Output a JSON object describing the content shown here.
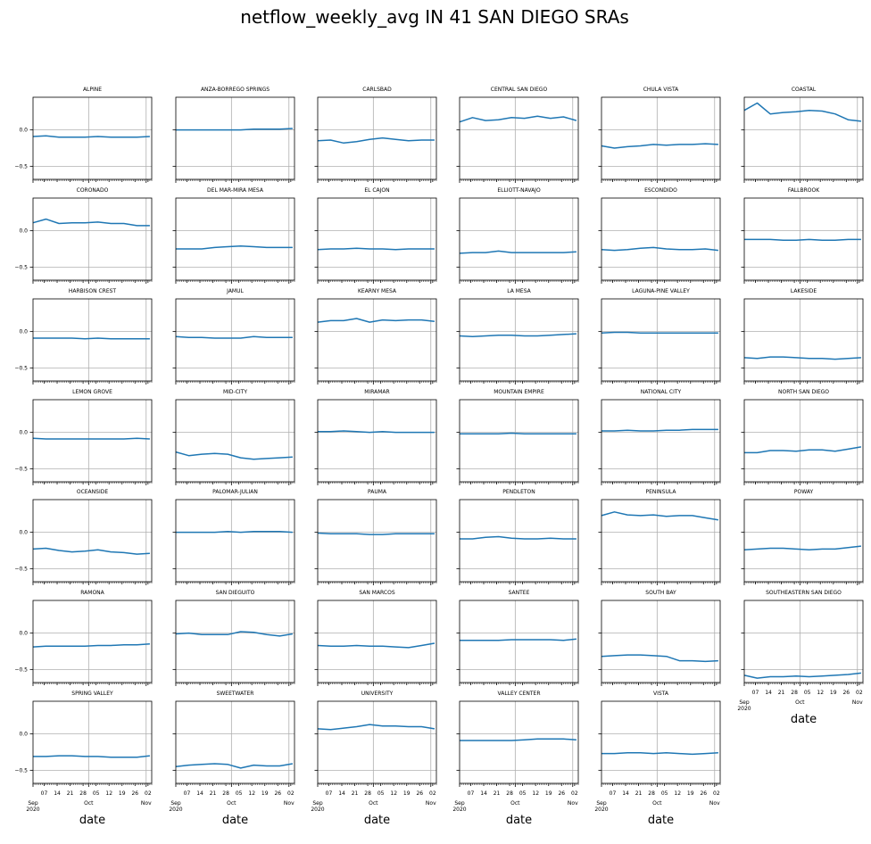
{
  "chart_data": {
    "type": "line",
    "title": "netflow_weekly_avg IN 41 SAN DIEGO SRAs",
    "xlabel": "date",
    "ylim": [
      -0.68,
      0.45
    ],
    "yticks": [
      0.0,
      -0.5
    ],
    "ytick_labels": [
      "0.0",
      "−0.5"
    ],
    "x_range": [
      "2020-09-01",
      "2020-11-04"
    ],
    "x_major_ticks": [
      "2020-10-01",
      "2020-11-01"
    ],
    "x_major_tick_labels": [
      "Oct",
      "Nov"
    ],
    "x_start_label": [
      "Sep",
      "2020"
    ],
    "x_minor_ticks": [
      "2020-09-07",
      "2020-09-14",
      "2020-09-21",
      "2020-09-28",
      "2020-10-05",
      "2020-10-12",
      "2020-10-19",
      "2020-10-26",
      "2020-11-02"
    ],
    "x_minor_tick_labels": [
      "07",
      "14",
      "21",
      "28",
      "05",
      "12",
      "19",
      "26",
      "02"
    ],
    "grid": true,
    "line_color": "#1f77b4",
    "x": [
      "2020-09-01",
      "2020-09-08",
      "2020-09-15",
      "2020-09-22",
      "2020-09-29",
      "2020-10-06",
      "2020-10-13",
      "2020-10-20",
      "2020-10-27",
      "2020-11-03"
    ],
    "panels": [
      {
        "name": "ALPINE",
        "values": [
          -0.09,
          -0.08,
          -0.1,
          -0.1,
          -0.1,
          -0.09,
          -0.1,
          -0.1,
          -0.1,
          -0.09
        ]
      },
      {
        "name": "ANZA-BORREGO SPRINGS",
        "values": [
          0.0,
          0.0,
          0.0,
          0.0,
          0.0,
          0.0,
          0.01,
          0.01,
          0.01,
          0.02
        ]
      },
      {
        "name": "CARLSBAD",
        "values": [
          -0.15,
          -0.14,
          -0.18,
          -0.16,
          -0.13,
          -0.11,
          -0.13,
          -0.15,
          -0.14,
          -0.14
        ]
      },
      {
        "name": "CENTRAL SAN DIEGO",
        "values": [
          0.11,
          0.17,
          0.13,
          0.14,
          0.17,
          0.16,
          0.19,
          0.16,
          0.18,
          0.13
        ]
      },
      {
        "name": "CHULA VISTA",
        "values": [
          -0.22,
          -0.25,
          -0.23,
          -0.22,
          -0.2,
          -0.21,
          -0.2,
          -0.2,
          -0.19,
          -0.2
        ]
      },
      {
        "name": "COASTAL",
        "values": [
          0.27,
          0.37,
          0.22,
          0.24,
          0.25,
          0.27,
          0.26,
          0.22,
          0.14,
          0.12
        ]
      },
      {
        "name": "CORONADO",
        "values": [
          0.11,
          0.16,
          0.1,
          0.11,
          0.11,
          0.12,
          0.1,
          0.1,
          0.07,
          0.07
        ]
      },
      {
        "name": "DEL MAR-MIRA MESA",
        "values": [
          -0.25,
          -0.25,
          -0.25,
          -0.23,
          -0.22,
          -0.21,
          -0.22,
          -0.23,
          -0.23,
          -0.23
        ]
      },
      {
        "name": "EL CAJON",
        "values": [
          -0.26,
          -0.25,
          -0.25,
          -0.24,
          -0.25,
          -0.25,
          -0.26,
          -0.25,
          -0.25,
          -0.25
        ]
      },
      {
        "name": "ELLIOTT-NAVAJO",
        "values": [
          -0.31,
          -0.3,
          -0.3,
          -0.28,
          -0.3,
          -0.3,
          -0.3,
          -0.3,
          -0.3,
          -0.29
        ]
      },
      {
        "name": "ESCONDIDO",
        "values": [
          -0.26,
          -0.27,
          -0.26,
          -0.24,
          -0.23,
          -0.25,
          -0.26,
          -0.26,
          -0.25,
          -0.27
        ]
      },
      {
        "name": "FALLBROOK",
        "values": [
          -0.12,
          -0.12,
          -0.12,
          -0.13,
          -0.13,
          -0.12,
          -0.13,
          -0.13,
          -0.12,
          -0.12
        ]
      },
      {
        "name": "HARBISON CREST",
        "values": [
          -0.09,
          -0.09,
          -0.09,
          -0.09,
          -0.1,
          -0.09,
          -0.1,
          -0.1,
          -0.1,
          -0.1
        ]
      },
      {
        "name": "JAMUL",
        "values": [
          -0.07,
          -0.08,
          -0.08,
          -0.09,
          -0.09,
          -0.09,
          -0.07,
          -0.08,
          -0.08,
          -0.08
        ]
      },
      {
        "name": "KEARNY MESA",
        "values": [
          0.13,
          0.15,
          0.15,
          0.18,
          0.13,
          0.16,
          0.15,
          0.16,
          0.16,
          0.14
        ]
      },
      {
        "name": "LA MESA",
        "values": [
          -0.06,
          -0.07,
          -0.06,
          -0.05,
          -0.05,
          -0.06,
          -0.06,
          -0.05,
          -0.04,
          -0.03
        ]
      },
      {
        "name": "LAGUNA-PINE VALLEY",
        "values": [
          -0.02,
          -0.01,
          -0.01,
          -0.02,
          -0.02,
          -0.02,
          -0.02,
          -0.02,
          -0.02,
          -0.02
        ]
      },
      {
        "name": "LAKESIDE",
        "values": [
          -0.36,
          -0.37,
          -0.35,
          -0.35,
          -0.36,
          -0.37,
          -0.37,
          -0.38,
          -0.37,
          -0.36
        ]
      },
      {
        "name": "LEMON GROVE",
        "values": [
          -0.08,
          -0.09,
          -0.09,
          -0.09,
          -0.09,
          -0.09,
          -0.09,
          -0.09,
          -0.08,
          -0.09
        ]
      },
      {
        "name": "MID-CITY",
        "values": [
          -0.27,
          -0.32,
          -0.3,
          -0.29,
          -0.3,
          -0.35,
          -0.37,
          -0.36,
          -0.35,
          -0.34
        ]
      },
      {
        "name": "MIRAMAR",
        "values": [
          0.01,
          0.01,
          0.02,
          0.01,
          0.0,
          0.01,
          0.0,
          0.0,
          0.0,
          0.0
        ]
      },
      {
        "name": "MOUNTAIN EMPIRE",
        "values": [
          -0.02,
          -0.02,
          -0.02,
          -0.02,
          -0.01,
          -0.02,
          -0.02,
          -0.02,
          -0.02,
          -0.02
        ]
      },
      {
        "name": "NATIONAL CITY",
        "values": [
          0.02,
          0.02,
          0.03,
          0.02,
          0.02,
          0.03,
          0.03,
          0.04,
          0.04,
          0.04
        ]
      },
      {
        "name": "NORTH SAN DIEGO",
        "values": [
          -0.28,
          -0.28,
          -0.25,
          -0.25,
          -0.26,
          -0.24,
          -0.24,
          -0.26,
          -0.23,
          -0.2
        ]
      },
      {
        "name": "OCEANSIDE",
        "values": [
          -0.23,
          -0.22,
          -0.25,
          -0.27,
          -0.26,
          -0.24,
          -0.27,
          -0.28,
          -0.3,
          -0.29
        ]
      },
      {
        "name": "PALOMAR-JULIAN",
        "values": [
          0.0,
          0.0,
          0.0,
          0.0,
          0.01,
          0.0,
          0.01,
          0.01,
          0.01,
          0.0
        ]
      },
      {
        "name": "PAUMA",
        "values": [
          -0.01,
          -0.02,
          -0.02,
          -0.02,
          -0.03,
          -0.03,
          -0.02,
          -0.02,
          -0.02,
          -0.02
        ]
      },
      {
        "name": "PENDLETON",
        "values": [
          -0.09,
          -0.09,
          -0.07,
          -0.06,
          -0.08,
          -0.09,
          -0.09,
          -0.08,
          -0.09,
          -0.09
        ]
      },
      {
        "name": "PENINSULA",
        "values": [
          0.23,
          0.28,
          0.24,
          0.23,
          0.24,
          0.22,
          0.23,
          0.23,
          0.2,
          0.17
        ]
      },
      {
        "name": "POWAY",
        "values": [
          -0.24,
          -0.23,
          -0.22,
          -0.22,
          -0.23,
          -0.24,
          -0.23,
          -0.23,
          -0.21,
          -0.19
        ]
      },
      {
        "name": "RAMONA",
        "values": [
          -0.19,
          -0.18,
          -0.18,
          -0.18,
          -0.18,
          -0.17,
          -0.17,
          -0.16,
          -0.16,
          -0.15
        ]
      },
      {
        "name": "SAN DIEGUITO",
        "values": [
          -0.01,
          0.0,
          -0.02,
          -0.02,
          -0.02,
          0.02,
          0.01,
          -0.02,
          -0.04,
          -0.01
        ]
      },
      {
        "name": "SAN MARCOS",
        "values": [
          -0.17,
          -0.18,
          -0.18,
          -0.17,
          -0.18,
          -0.18,
          -0.19,
          -0.2,
          -0.17,
          -0.14
        ]
      },
      {
        "name": "SANTEE",
        "values": [
          -0.1,
          -0.1,
          -0.1,
          -0.1,
          -0.09,
          -0.09,
          -0.09,
          -0.09,
          -0.1,
          -0.08
        ]
      },
      {
        "name": "SOUTH BAY",
        "values": [
          -0.32,
          -0.31,
          -0.3,
          -0.3,
          -0.31,
          -0.32,
          -0.38,
          -0.38,
          -0.39,
          -0.38
        ]
      },
      {
        "name": "SOUTHEASTERN SAN DIEGO",
        "values": [
          -0.58,
          -0.62,
          -0.6,
          -0.6,
          -0.59,
          -0.6,
          -0.59,
          -0.58,
          -0.57,
          -0.55
        ]
      },
      {
        "name": "SPRING VALLEY",
        "values": [
          -0.31,
          -0.31,
          -0.3,
          -0.3,
          -0.31,
          -0.31,
          -0.32,
          -0.32,
          -0.32,
          -0.3
        ]
      },
      {
        "name": "SWEETWATER",
        "values": [
          -0.45,
          -0.43,
          -0.42,
          -0.41,
          -0.42,
          -0.47,
          -0.43,
          -0.44,
          -0.44,
          -0.41
        ]
      },
      {
        "name": "UNIVERSITY",
        "values": [
          0.07,
          0.06,
          0.08,
          0.1,
          0.13,
          0.11,
          0.11,
          0.1,
          0.1,
          0.07
        ]
      },
      {
        "name": "VALLEY CENTER",
        "values": [
          -0.09,
          -0.09,
          -0.09,
          -0.09,
          -0.09,
          -0.08,
          -0.07,
          -0.07,
          -0.07,
          -0.08
        ]
      },
      {
        "name": "VISTA",
        "values": [
          -0.27,
          -0.27,
          -0.26,
          -0.26,
          -0.27,
          -0.26,
          -0.27,
          -0.28,
          -0.27,
          -0.26
        ]
      }
    ]
  }
}
